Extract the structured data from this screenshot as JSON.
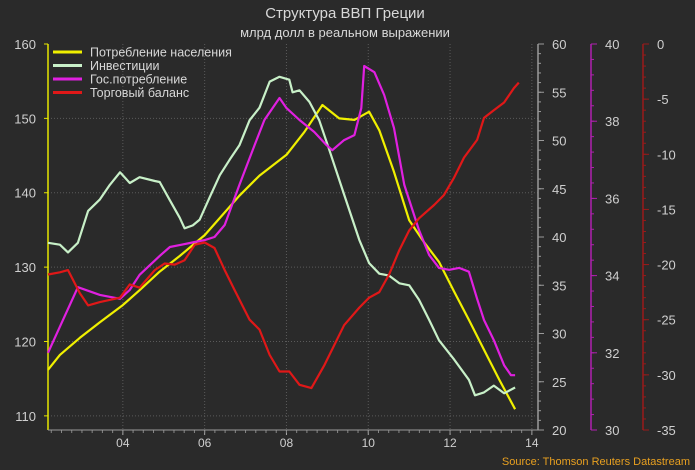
{
  "chart_data": {
    "type": "line",
    "title": "Структура ВВП Греции",
    "subtitle": "млрд долл в реальном выражении",
    "source": "Source: Thomson Reuters Datastream",
    "legend_position": "top-left",
    "grid": true,
    "x_range": [
      2002.17,
      2014.15
    ],
    "x_ticks": [
      {
        "value": 2004,
        "label": "04"
      },
      {
        "value": 2006,
        "label": "06"
      },
      {
        "value": 2008,
        "label": "08"
      },
      {
        "value": 2010,
        "label": "10"
      },
      {
        "value": 2012,
        "label": "12"
      },
      {
        "value": 2014,
        "label": "14"
      }
    ],
    "axes": [
      {
        "id": "left",
        "color": "#e6e600",
        "range": [
          108.1,
          160
        ],
        "ticks": [
          110,
          120,
          130,
          140,
          150,
          160
        ]
      },
      {
        "id": "right1",
        "color": "#9a9a9a",
        "range": [
          20,
          60
        ],
        "ticks": [
          20,
          25,
          30,
          35,
          40,
          45,
          50,
          55,
          60
        ]
      },
      {
        "id": "right2",
        "color": "#b020b0",
        "range": [
          30,
          40
        ],
        "ticks": [
          30,
          32,
          34,
          36,
          38,
          40
        ]
      },
      {
        "id": "right3",
        "color": "#9a1a1a",
        "range": [
          -35,
          0
        ],
        "ticks": [
          -35,
          -30,
          -25,
          -20,
          -15,
          -10,
          -5,
          0
        ]
      }
    ],
    "series": [
      {
        "name": "Потребление населения",
        "color": "#f0f000",
        "axis": "left",
        "x": [
          2002.17,
          2002.46,
          2002.95,
          2003.44,
          2004,
          2004.41,
          2004.9,
          2005.39,
          2006,
          2006.37,
          2006.85,
          2007.34,
          2008,
          2008.44,
          2008.88,
          2009.29,
          2009.66,
          2010.02,
          2010.27,
          2010.63,
          2011,
          2011.37,
          2011.73,
          2012.1,
          2012.46,
          2012.83,
          2013.2,
          2013.59
        ],
        "y": [
          116.2,
          118.2,
          120.5,
          122.6,
          124.9,
          126.9,
          129.4,
          131.5,
          134.3,
          136.6,
          139.6,
          142.3,
          145.1,
          148.2,
          151.8,
          150.0,
          149.8,
          150.9,
          148.4,
          142.8,
          136.3,
          133.3,
          130.7,
          126.7,
          122.9,
          118.9,
          114.9,
          110.9
        ]
      },
      {
        "name": "Инвестиции",
        "color": "#c8f0c8",
        "axis": "right1",
        "x": [
          2002.17,
          2002.46,
          2002.66,
          2002.9,
          2003.15,
          2003.44,
          2003.68,
          2003.93,
          2004.17,
          2004.41,
          2004.78,
          2004.9,
          2005.15,
          2005.39,
          2005.51,
          2005.71,
          2005.88,
          2006.12,
          2006.37,
          2006.61,
          2006.85,
          2007.1,
          2007.34,
          2007.59,
          2007.83,
          2008.07,
          2008.15,
          2008.32,
          2008.56,
          2008.8,
          2009.05,
          2009.41,
          2009.78,
          2010.02,
          2010.27,
          2010.51,
          2010.76,
          2011,
          2011.24,
          2011.49,
          2011.73,
          2012.1,
          2012.46,
          2012.61,
          2012.83,
          2013.07,
          2013.32,
          2013.59
        ],
        "y": [
          39.4,
          39.2,
          38.4,
          39.4,
          42.7,
          43.9,
          45.4,
          46.7,
          45.6,
          46.2,
          45.8,
          45.7,
          43.8,
          42,
          40.9,
          41.2,
          41.8,
          44.1,
          46.4,
          48,
          49.5,
          52.1,
          53.4,
          56.1,
          56.6,
          56.3,
          55,
          55.2,
          54,
          52.1,
          49,
          44.4,
          39.7,
          37.3,
          36.2,
          36,
          35.2,
          35,
          33.5,
          31.4,
          29.3,
          27.3,
          25.2,
          23.6,
          23.9,
          24.6,
          23.8,
          24.4
        ]
      },
      {
        "name": "Гос.потребление",
        "color": "#e020e0",
        "axis": "right2",
        "x": [
          2002.17,
          2002.9,
          2003.44,
          2003.93,
          2004.17,
          2004.41,
          2004.9,
          2005.15,
          2005.39,
          2005.76,
          2006,
          2006.24,
          2006.49,
          2006.85,
          2007.22,
          2007.46,
          2007.83,
          2008,
          2008.32,
          2008.68,
          2008.98,
          2009.12,
          2009.41,
          2009.66,
          2009.83,
          2009.9,
          2010.15,
          2010.39,
          2010.63,
          2010.88,
          2011.24,
          2011.49,
          2011.73,
          2011.98,
          2012.22,
          2012.46,
          2012.66,
          2012.83,
          2013.07,
          2013.32,
          2013.49,
          2013.59
        ],
        "y": [
          32.0,
          33.7,
          33.5,
          33.4,
          33.63,
          34.02,
          34.51,
          34.74,
          34.79,
          34.87,
          34.92,
          35.0,
          35.31,
          36.35,
          37.38,
          38.03,
          38.6,
          38.34,
          38.03,
          37.72,
          37.38,
          37.25,
          37.51,
          37.64,
          38.34,
          39.43,
          39.27,
          38.68,
          37.82,
          36.35,
          35.18,
          34.53,
          34.2,
          34.15,
          34.2,
          34.1,
          33.4,
          32.85,
          32.33,
          31.68,
          31.42,
          31.42
        ]
      },
      {
        "name": "Торговый баланс",
        "color": "#e01818",
        "axis": "right3",
        "x": [
          2002.17,
          2002.46,
          2002.66,
          2002.95,
          2003.15,
          2003.44,
          2003.93,
          2004.17,
          2004.41,
          2004.78,
          2005.02,
          2005.27,
          2005.51,
          2005.76,
          2006,
          2006.24,
          2006.49,
          2006.73,
          2007.1,
          2007.34,
          2007.59,
          2007.83,
          2008.07,
          2008.32,
          2008.61,
          2008.93,
          2009.41,
          2009.78,
          2010.02,
          2010.27,
          2010.51,
          2010.76,
          2011,
          2011.24,
          2011.61,
          2011.85,
          2012.1,
          2012.34,
          2012.66,
          2012.83,
          2013.07,
          2013.32,
          2013.56,
          2013.68
        ],
        "y": [
          -20.9,
          -20.7,
          -20.5,
          -22.6,
          -23.7,
          -23.4,
          -23.0,
          -21.8,
          -22.1,
          -20.5,
          -19.9,
          -20.0,
          -19.6,
          -18.2,
          -18.0,
          -18.5,
          -20.5,
          -22.3,
          -25.0,
          -25.9,
          -28.2,
          -29.7,
          -29.7,
          -30.9,
          -31.2,
          -29.1,
          -25.5,
          -23.9,
          -23.0,
          -22.5,
          -20.9,
          -18.7,
          -16.9,
          -15.8,
          -14.6,
          -13.7,
          -12.1,
          -10.3,
          -8.7,
          -6.7,
          -6.0,
          -5.3,
          -4.0,
          -3.5
        ]
      }
    ]
  }
}
